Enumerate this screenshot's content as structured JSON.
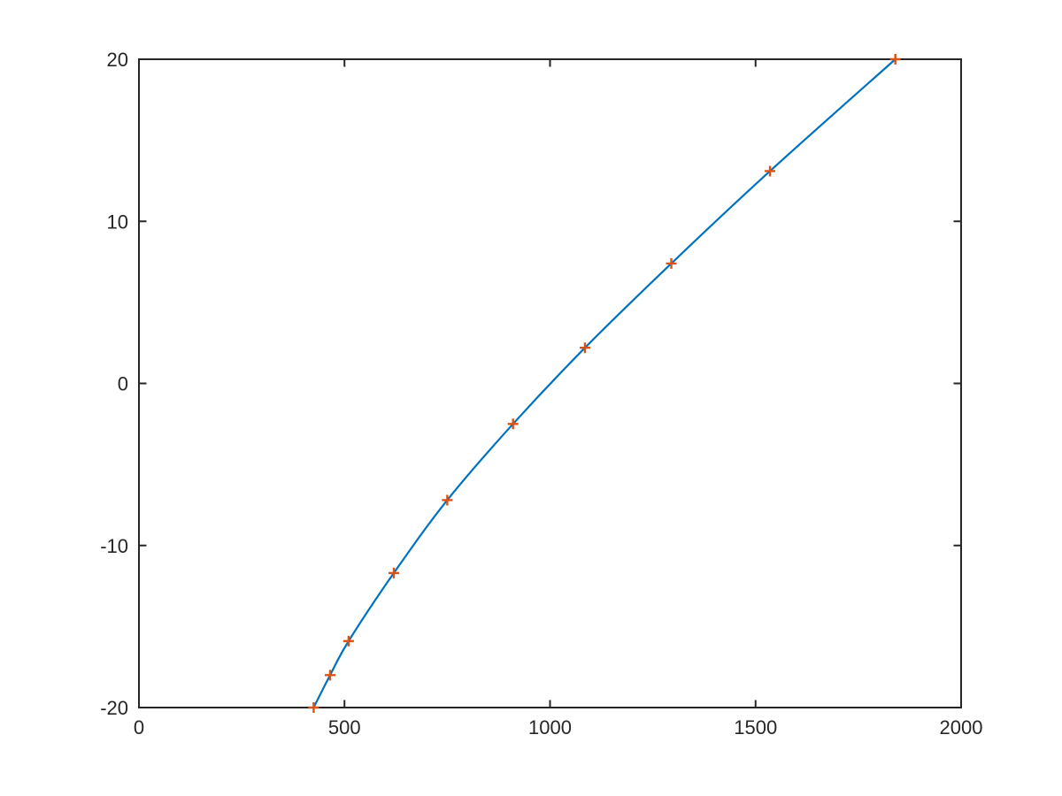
{
  "figure": {
    "background": "#ffffff",
    "axes_color": "#262626",
    "tick_label_color": "#262626",
    "tick_label_font_size": 22
  },
  "chart_data": {
    "type": "line",
    "title": "",
    "xlabel": "",
    "ylabel": "",
    "xlim": [
      0,
      2000
    ],
    "ylim": [
      -20,
      20
    ],
    "grid": false,
    "legend": "none",
    "x_ticks": {
      "values": [
        0,
        500,
        1000,
        1500,
        2000
      ],
      "labels": [
        "0",
        "500",
        "1000",
        "1500",
        "2000"
      ]
    },
    "y_ticks": {
      "values": [
        -20,
        -10,
        0,
        10,
        20
      ],
      "labels": [
        "-20",
        "-10",
        "0",
        "10",
        "20"
      ]
    },
    "series": [
      {
        "name": "interpolated-curve",
        "style": "line",
        "color": "#0072BD",
        "line_width": 2.2,
        "x": [
          425,
          465,
          510,
          620,
          750,
          910,
          1085,
          1295,
          1535,
          1840
        ],
        "y": [
          -20,
          -18,
          -15.9,
          -11.7,
          -7.2,
          -2.5,
          2.2,
          7.4,
          13.1,
          20
        ]
      },
      {
        "name": "data-points",
        "style": "scatter",
        "marker": "plus",
        "color": "#D95319",
        "marker_size": 12,
        "marker_line_width": 2.4,
        "x": [
          425,
          465,
          510,
          620,
          750,
          910,
          1085,
          1295,
          1535,
          1840
        ],
        "y": [
          -20,
          -18,
          -15.9,
          -11.7,
          -7.2,
          -2.5,
          2.2,
          7.4,
          13.1,
          20
        ]
      }
    ]
  }
}
